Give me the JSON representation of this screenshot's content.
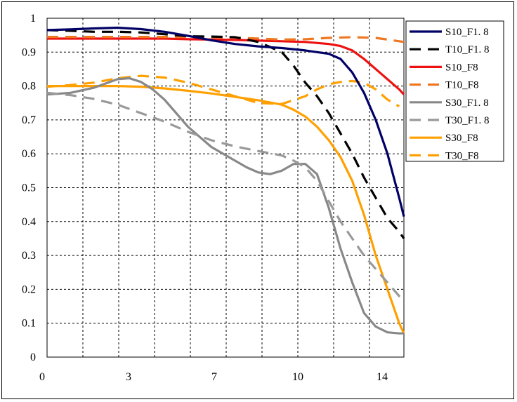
{
  "chart_data": {
    "type": "line",
    "title": "",
    "xlabel": "",
    "ylabel": "",
    "xlim": [
      0,
      15.2
    ],
    "ylim": [
      0,
      1
    ],
    "x_ticks": [
      0,
      3,
      7,
      10,
      14
    ],
    "x_tick_labels": [
      "0",
      "3",
      "7",
      "10",
      "14"
    ],
    "y_ticks": [
      0,
      0.1,
      0.2,
      0.3,
      0.4,
      0.5,
      0.6,
      0.7,
      0.8,
      0.9,
      1
    ],
    "y_tick_labels": [
      "0",
      "0.1",
      "0.2",
      "0.3",
      "0.4",
      "0.5",
      "0.6",
      "0.7",
      "0.8",
      "0.9",
      "1"
    ],
    "grid": true,
    "legend_position": "right",
    "series": [
      {
        "name": "S10_F1. 8",
        "color": "#000066",
        "dashed": false,
        "points": [
          [
            0,
            0.965
          ],
          [
            1,
            0.967
          ],
          [
            2,
            0.97
          ],
          [
            3,
            0.972
          ],
          [
            4,
            0.968
          ],
          [
            5,
            0.96
          ],
          [
            6,
            0.948
          ],
          [
            7,
            0.935
          ],
          [
            8,
            0.924
          ],
          [
            9,
            0.917
          ],
          [
            10,
            0.912
          ],
          [
            11,
            0.905
          ],
          [
            12,
            0.895
          ],
          [
            12.5,
            0.88
          ],
          [
            13,
            0.84
          ],
          [
            13.5,
            0.78
          ],
          [
            14,
            0.7
          ],
          [
            14.5,
            0.6
          ],
          [
            15,
            0.47
          ],
          [
            15.2,
            0.415
          ]
        ]
      },
      {
        "name": "T10_F1. 8",
        "color": "#000000",
        "dashed": true,
        "points": [
          [
            0,
            0.965
          ],
          [
            1,
            0.963
          ],
          [
            2,
            0.96
          ],
          [
            3,
            0.96
          ],
          [
            4,
            0.958
          ],
          [
            5,
            0.953
          ],
          [
            6,
            0.947
          ],
          [
            7,
            0.946
          ],
          [
            8,
            0.944
          ],
          [
            9,
            0.93
          ],
          [
            10,
            0.9
          ],
          [
            10.5,
            0.86
          ],
          [
            11,
            0.81
          ],
          [
            11.5,
            0.77
          ],
          [
            12,
            0.72
          ],
          [
            12.5,
            0.66
          ],
          [
            13,
            0.6
          ],
          [
            13.5,
            0.53
          ],
          [
            14,
            0.47
          ],
          [
            14.5,
            0.41
          ],
          [
            15,
            0.37
          ],
          [
            15.2,
            0.35
          ]
        ]
      },
      {
        "name": "S10_F8",
        "color": "#ee1111",
        "dashed": false,
        "points": [
          [
            0,
            0.94
          ],
          [
            1,
            0.94
          ],
          [
            2,
            0.94
          ],
          [
            3,
            0.94
          ],
          [
            4,
            0.94
          ],
          [
            5,
            0.94
          ],
          [
            6,
            0.938
          ],
          [
            7,
            0.937
          ],
          [
            8,
            0.936
          ],
          [
            9,
            0.934
          ],
          [
            10,
            0.932
          ],
          [
            11,
            0.93
          ],
          [
            12,
            0.924
          ],
          [
            12.5,
            0.918
          ],
          [
            13,
            0.905
          ],
          [
            13.5,
            0.88
          ],
          [
            14,
            0.85
          ],
          [
            14.5,
            0.82
          ],
          [
            15,
            0.79
          ],
          [
            15.2,
            0.775
          ]
        ]
      },
      {
        "name": "T10_F8",
        "color": "#ee7722",
        "dashed": true,
        "points": [
          [
            0,
            0.945
          ],
          [
            2,
            0.945
          ],
          [
            4,
            0.945
          ],
          [
            6,
            0.945
          ],
          [
            8,
            0.943
          ],
          [
            10,
            0.937
          ],
          [
            11,
            0.938
          ],
          [
            12,
            0.942
          ],
          [
            13,
            0.944
          ],
          [
            14,
            0.942
          ],
          [
            15,
            0.932
          ],
          [
            15.2,
            0.93
          ]
        ]
      },
      {
        "name": "S30_F1. 8",
        "color": "#888888",
        "dashed": false,
        "points": [
          [
            0,
            0.775
          ],
          [
            1,
            0.78
          ],
          [
            2,
            0.795
          ],
          [
            3,
            0.82
          ],
          [
            3.5,
            0.823
          ],
          [
            4,
            0.812
          ],
          [
            4.5,
            0.79
          ],
          [
            5,
            0.76
          ],
          [
            5.5,
            0.72
          ],
          [
            6,
            0.68
          ],
          [
            6.5,
            0.65
          ],
          [
            7,
            0.62
          ],
          [
            8,
            0.58
          ],
          [
            8.5,
            0.56
          ],
          [
            9,
            0.545
          ],
          [
            9.5,
            0.54
          ],
          [
            10,
            0.55
          ],
          [
            10.5,
            0.57
          ],
          [
            11,
            0.57
          ],
          [
            11.5,
            0.54
          ],
          [
            12,
            0.44
          ],
          [
            12.5,
            0.32
          ],
          [
            13,
            0.22
          ],
          [
            13.5,
            0.13
          ],
          [
            14,
            0.09
          ],
          [
            14.5,
            0.073
          ],
          [
            15,
            0.07
          ],
          [
            15.2,
            0.07
          ]
        ]
      },
      {
        "name": "T30_F1. 8",
        "color": "#999999",
        "dashed": true,
        "points": [
          [
            0,
            0.78
          ],
          [
            1,
            0.773
          ],
          [
            2,
            0.762
          ],
          [
            3,
            0.745
          ],
          [
            4,
            0.72
          ],
          [
            5,
            0.695
          ],
          [
            6,
            0.665
          ],
          [
            7,
            0.64
          ],
          [
            8,
            0.622
          ],
          [
            9,
            0.608
          ],
          [
            10,
            0.595
          ],
          [
            10.5,
            0.58
          ],
          [
            11,
            0.56
          ],
          [
            11.5,
            0.52
          ],
          [
            12,
            0.46
          ],
          [
            12.5,
            0.4
          ],
          [
            13,
            0.35
          ],
          [
            13.5,
            0.3
          ],
          [
            14,
            0.26
          ],
          [
            14.5,
            0.22
          ],
          [
            15,
            0.18
          ],
          [
            15.2,
            0.165
          ]
        ]
      },
      {
        "name": "S30_F8",
        "color": "#ffa000",
        "dashed": false,
        "points": [
          [
            0,
            0.8
          ],
          [
            1,
            0.8
          ],
          [
            2,
            0.8
          ],
          [
            3,
            0.8
          ],
          [
            4,
            0.798
          ],
          [
            5,
            0.793
          ],
          [
            6,
            0.786
          ],
          [
            7,
            0.778
          ],
          [
            8,
            0.768
          ],
          [
            9,
            0.758
          ],
          [
            10,
            0.745
          ],
          [
            10.5,
            0.73
          ],
          [
            11,
            0.71
          ],
          [
            11.5,
            0.68
          ],
          [
            12,
            0.64
          ],
          [
            12.5,
            0.59
          ],
          [
            13,
            0.52
          ],
          [
            13.5,
            0.42
          ],
          [
            14,
            0.3
          ],
          [
            14.5,
            0.2
          ],
          [
            15,
            0.1
          ],
          [
            15.2,
            0.07
          ]
        ]
      },
      {
        "name": "T30_F8",
        "color": "#ffa000",
        "dashed": true,
        "points": [
          [
            0,
            0.798
          ],
          [
            1,
            0.803
          ],
          [
            2,
            0.81
          ],
          [
            3,
            0.823
          ],
          [
            4,
            0.83
          ],
          [
            5,
            0.825
          ],
          [
            6,
            0.81
          ],
          [
            7,
            0.79
          ],
          [
            8,
            0.77
          ],
          [
            9,
            0.75
          ],
          [
            10,
            0.747
          ],
          [
            11,
            0.77
          ],
          [
            11.5,
            0.79
          ],
          [
            12,
            0.805
          ],
          [
            12.5,
            0.812
          ],
          [
            13,
            0.815
          ],
          [
            13.5,
            0.81
          ],
          [
            14,
            0.79
          ],
          [
            14.5,
            0.76
          ],
          [
            15,
            0.74
          ]
        ]
      }
    ]
  }
}
